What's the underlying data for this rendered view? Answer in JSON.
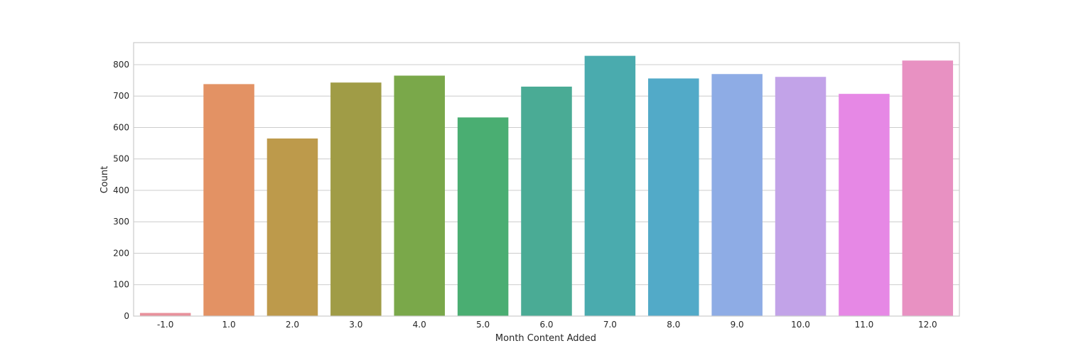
{
  "chart_data": {
    "type": "bar",
    "title": "",
    "xlabel": "Month Content Added",
    "ylabel": "Count",
    "categories": [
      "-1.0",
      "1.0",
      "2.0",
      "3.0",
      "4.0",
      "5.0",
      "6.0",
      "7.0",
      "8.0",
      "9.0",
      "10.0",
      "11.0",
      "12.0"
    ],
    "values": [
      10,
      738,
      565,
      743,
      765,
      632,
      730,
      828,
      756,
      770,
      761,
      707,
      813
    ],
    "colors": [
      "#e8919c",
      "#e39264",
      "#bd9a4b",
      "#a09c46",
      "#7aa84a",
      "#4aae72",
      "#4aab95",
      "#4aabae",
      "#52aac8",
      "#8eace5",
      "#c2a3e8",
      "#e688e5",
      "#e891c2"
    ],
    "ylim": [
      0,
      870
    ],
    "yticks": [
      0,
      100,
      200,
      300,
      400,
      500,
      600,
      700,
      800
    ],
    "grid": true,
    "legend": "none"
  }
}
